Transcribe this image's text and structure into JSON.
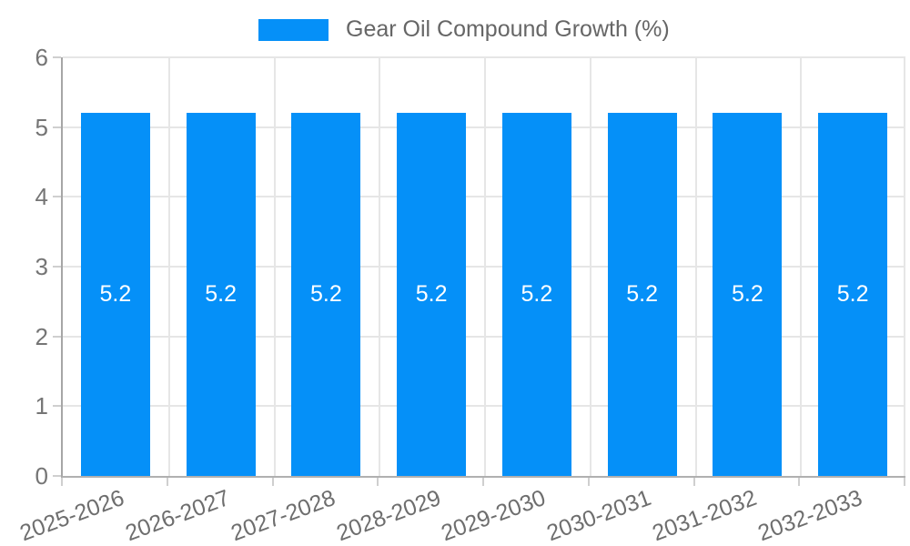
{
  "chart_data": {
    "type": "bar",
    "title": "Gear Oil Compound Growth (%)",
    "categories": [
      "2025-2026",
      "2026-2027",
      "2027-2028",
      "2028-2029",
      "2029-2030",
      "2030-2031",
      "2031-2032",
      "2032-2033"
    ],
    "values": [
      5.2,
      5.2,
      5.2,
      5.2,
      5.2,
      5.2,
      5.2,
      5.2
    ],
    "bar_labels": [
      "5.2",
      "5.2",
      "5.2",
      "5.2",
      "5.2",
      "5.2",
      "5.2",
      "5.2"
    ],
    "xlabel": "",
    "ylabel": "",
    "ylim": [
      0,
      6
    ],
    "yticks": [
      0,
      1,
      2,
      3,
      4,
      5,
      6
    ],
    "grid": true,
    "legend_position": "top-center",
    "x_label_rotation_deg": -20,
    "colors": {
      "bar": "#0590f8",
      "bar_label": "#ffffff",
      "grid": "#e6e6e6",
      "axis": "#a6a6a6",
      "tick_text": "#757575",
      "legend_text": "#666666",
      "background": "#ffffff"
    }
  }
}
